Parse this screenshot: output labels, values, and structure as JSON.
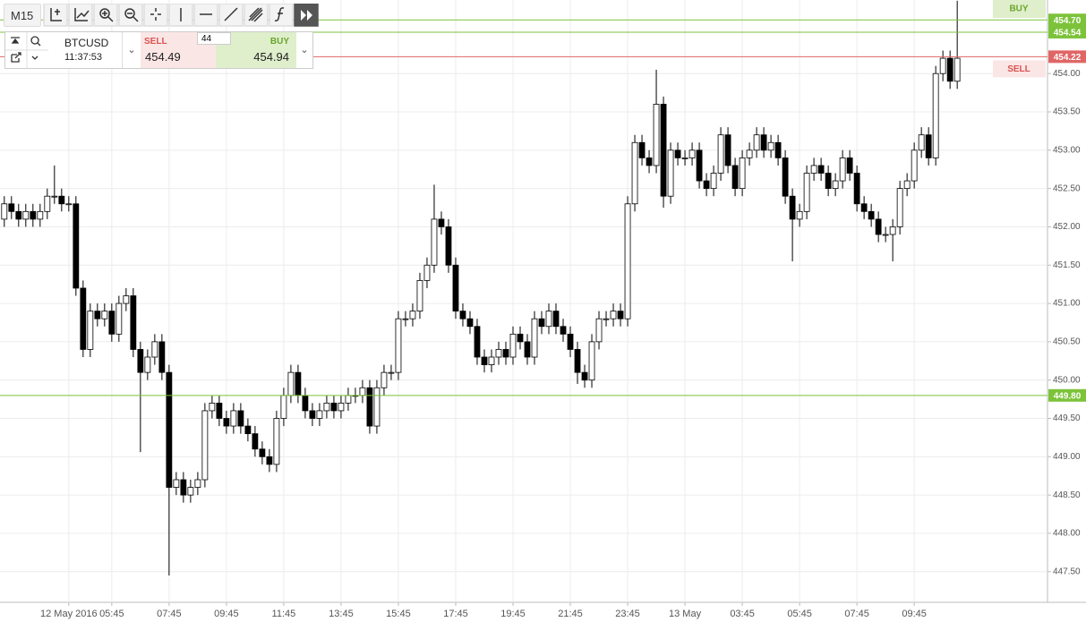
{
  "toolbar": {
    "timeframe": "M15"
  },
  "trade_panel": {
    "symbol": "BTCUSD",
    "time": "11:37:53",
    "sell_label": "SELL",
    "sell_price": "454.49",
    "quantity": "44",
    "buy_label": "BUY",
    "buy_price": "454.94"
  },
  "chart_data": {
    "type": "candlestick",
    "open": [
      452.1,
      452.3,
      452.2,
      452.1,
      452.2,
      452.1,
      452.2,
      452.4,
      452.4,
      452.3,
      452.3,
      451.2,
      450.4,
      450.9,
      450.8,
      450.9,
      450.6,
      451.0,
      451.1,
      450.4,
      450.1,
      450.3,
      450.5,
      450.1,
      448.6,
      448.7,
      448.5,
      448.6,
      448.7,
      449.6,
      449.7,
      449.5,
      449.4,
      449.6,
      449.4,
      449.3,
      449.1,
      449.0,
      448.9,
      449.5,
      449.8,
      450.1,
      449.8,
      449.6,
      449.5,
      449.6,
      449.7,
      449.6,
      449.7,
      449.8,
      449.8,
      449.9,
      449.4,
      449.9,
      450.1,
      450.1,
      450.8,
      450.8,
      450.9,
      451.3,
      451.5,
      452.1,
      452.0,
      451.5,
      450.9,
      450.8,
      450.7,
      450.3,
      450.2,
      450.3,
      450.4,
      450.3,
      450.6,
      450.5,
      450.3,
      450.8,
      450.7,
      450.9,
      450.7,
      450.6,
      450.4,
      450.1,
      450.0,
      450.5,
      450.8,
      450.8,
      450.9,
      450.8,
      452.3,
      453.1,
      452.9,
      452.8,
      453.6,
      452.4,
      453.0,
      452.9,
      452.9,
      453.0,
      452.6,
      452.5,
      452.7,
      453.2,
      452.8,
      452.5,
      452.9,
      453.0,
      453.2,
      453.0,
      453.1,
      452.9,
      452.4,
      452.1,
      452.2,
      452.7,
      452.8,
      452.7,
      452.5,
      452.6,
      452.9,
      452.7,
      452.3,
      452.2,
      452.1,
      451.9,
      451.9,
      452.0,
      452.5,
      452.6,
      453.0,
      453.2,
      452.9,
      454.0,
      454.2,
      453.9
    ],
    "high": [
      452.4,
      452.4,
      452.3,
      452.3,
      452.3,
      452.3,
      452.5,
      452.8,
      452.5,
      452.4,
      452.4,
      451.3,
      451.0,
      451.0,
      451.0,
      451.0,
      451.1,
      451.2,
      451.2,
      450.5,
      450.4,
      450.6,
      450.6,
      450.2,
      448.8,
      448.8,
      448.7,
      448.8,
      449.7,
      449.8,
      449.8,
      449.6,
      449.7,
      449.7,
      449.5,
      449.4,
      449.2,
      449.1,
      449.6,
      449.9,
      450.2,
      450.2,
      449.9,
      449.7,
      449.7,
      449.8,
      449.8,
      449.8,
      449.9,
      449.9,
      450.0,
      450.0,
      450.0,
      450.2,
      450.2,
      450.9,
      450.9,
      451.0,
      451.4,
      451.6,
      452.55,
      452.2,
      452.1,
      451.6,
      451.0,
      450.9,
      450.8,
      450.4,
      450.4,
      450.5,
      450.5,
      450.7,
      450.7,
      450.6,
      450.9,
      450.9,
      451.0,
      451.0,
      450.8,
      450.7,
      450.5,
      450.2,
      450.6,
      450.9,
      450.9,
      451.0,
      451.0,
      452.4,
      453.2,
      453.2,
      453.0,
      454.05,
      453.7,
      453.1,
      453.1,
      453.0,
      453.1,
      453.1,
      452.7,
      452.8,
      453.3,
      453.3,
      452.9,
      453.0,
      453.1,
      453.3,
      453.3,
      453.2,
      453.2,
      453.0,
      452.5,
      452.3,
      452.8,
      452.9,
      452.9,
      452.8,
      452.7,
      453.0,
      453.0,
      452.8,
      452.4,
      452.3,
      452.2,
      452.0,
      452.1,
      452.6,
      452.7,
      453.1,
      453.3,
      453.3,
      454.1,
      454.3,
      454.3,
      454.95
    ],
    "low": [
      452.0,
      452.1,
      452.0,
      452.0,
      452.0,
      452.0,
      452.1,
      452.3,
      452.2,
      452.2,
      451.1,
      450.3,
      450.3,
      450.7,
      450.7,
      450.5,
      450.5,
      450.9,
      450.3,
      449.06,
      450.0,
      450.2,
      450.0,
      447.45,
      448.5,
      448.4,
      448.4,
      448.5,
      448.6,
      449.5,
      449.4,
      449.3,
      449.3,
      449.3,
      449.2,
      449.0,
      448.9,
      448.8,
      448.8,
      449.4,
      449.7,
      449.7,
      449.5,
      449.4,
      449.4,
      449.5,
      449.5,
      449.5,
      449.6,
      449.7,
      449.7,
      449.3,
      449.3,
      449.8,
      450.0,
      450.0,
      450.7,
      450.7,
      450.8,
      451.2,
      451.4,
      451.9,
      451.4,
      450.8,
      450.7,
      450.6,
      450.2,
      450.1,
      450.1,
      450.2,
      450.2,
      450.2,
      450.4,
      450.2,
      450.2,
      450.6,
      450.6,
      450.6,
      450.5,
      450.3,
      449.95,
      449.9,
      449.9,
      450.4,
      450.7,
      450.7,
      450.7,
      450.7,
      452.2,
      452.8,
      452.7,
      452.7,
      452.25,
      452.3,
      452.8,
      452.8,
      452.8,
      452.5,
      452.4,
      452.4,
      452.6,
      452.7,
      452.4,
      452.4,
      452.8,
      452.9,
      452.9,
      452.9,
      452.8,
      452.3,
      451.55,
      452.0,
      452.1,
      452.6,
      452.6,
      452.4,
      452.4,
      452.5,
      452.6,
      452.2,
      452.1,
      452.0,
      451.8,
      451.8,
      451.55,
      451.9,
      452.4,
      452.5,
      452.9,
      452.8,
      452.8,
      453.9,
      453.8,
      453.8
    ],
    "close": [
      452.3,
      452.2,
      452.1,
      452.2,
      452.1,
      452.2,
      452.4,
      452.4,
      452.3,
      452.3,
      451.2,
      450.4,
      450.9,
      450.8,
      450.9,
      450.6,
      451.0,
      451.1,
      450.4,
      450.1,
      450.3,
      450.5,
      450.1,
      448.6,
      448.7,
      448.5,
      448.6,
      448.7,
      449.6,
      449.7,
      449.5,
      449.4,
      449.6,
      449.4,
      449.3,
      449.1,
      449.0,
      448.9,
      449.5,
      449.8,
      450.1,
      449.8,
      449.6,
      449.5,
      449.6,
      449.7,
      449.6,
      449.7,
      449.8,
      449.8,
      449.9,
      449.4,
      449.9,
      450.1,
      450.1,
      450.8,
      450.8,
      450.9,
      451.3,
      451.5,
      452.1,
      452.0,
      451.5,
      450.9,
      450.8,
      450.7,
      450.3,
      450.2,
      450.3,
      450.4,
      450.3,
      450.6,
      450.5,
      450.3,
      450.8,
      450.7,
      450.9,
      450.7,
      450.6,
      450.4,
      450.1,
      450.0,
      450.5,
      450.8,
      450.8,
      450.9,
      450.8,
      452.3,
      453.1,
      452.9,
      452.8,
      453.6,
      452.4,
      453.0,
      452.9,
      452.9,
      453.0,
      452.6,
      452.5,
      452.7,
      453.2,
      452.8,
      452.5,
      452.9,
      453.0,
      453.2,
      453.0,
      453.1,
      452.9,
      452.4,
      452.1,
      452.2,
      452.7,
      452.8,
      452.7,
      452.5,
      452.6,
      452.9,
      452.7,
      452.3,
      452.2,
      452.1,
      451.9,
      451.9,
      452.0,
      452.5,
      452.6,
      453.0,
      453.2,
      452.9,
      454.0,
      454.2,
      453.9,
      454.2
    ],
    "up_color": "#ffffff",
    "down_color": "#000000",
    "wick_color": "#000000",
    "xlim": [
      -0.6,
      145.6
    ],
    "xticks": [
      {
        "value": 9,
        "label": "12 May 2016"
      },
      {
        "value": 15,
        "label": "05:45"
      },
      {
        "value": 23,
        "label": "07:45"
      },
      {
        "value": 31,
        "label": "09:45"
      },
      {
        "value": 39,
        "label": "11:45"
      },
      {
        "value": 47,
        "label": "13:45"
      },
      {
        "value": 55,
        "label": "15:45"
      },
      {
        "value": 63,
        "label": "17:45"
      },
      {
        "value": 71,
        "label": "19:45"
      },
      {
        "value": 79,
        "label": "21:45"
      },
      {
        "value": 87,
        "label": "23:45"
      },
      {
        "value": 95,
        "label": "13 May"
      },
      {
        "value": 103,
        "label": "03:45"
      },
      {
        "value": 111,
        "label": "05:45"
      },
      {
        "value": 119,
        "label": "07:45"
      },
      {
        "value": 127,
        "label": "09:45"
      }
    ],
    "ylim": [
      447.1,
      454.96
    ],
    "yticks": [
      {
        "value": 447.5,
        "label": "447.50"
      },
      {
        "value": 448,
        "label": "448.00"
      },
      {
        "value": 448.5,
        "label": "448.50"
      },
      {
        "value": 449,
        "label": "449.00"
      },
      {
        "value": 449.5,
        "label": "449.50"
      },
      {
        "value": 450,
        "label": "450.00"
      },
      {
        "value": 450.5,
        "label": "450.50"
      },
      {
        "value": 451,
        "label": "451.00"
      },
      {
        "value": 451.5,
        "label": "451.50"
      },
      {
        "value": 452,
        "label": "452.00"
      },
      {
        "value": 452.5,
        "label": "452.50"
      },
      {
        "value": 453,
        "label": "453.00"
      },
      {
        "value": 453.5,
        "label": "453.50"
      },
      {
        "value": 454,
        "label": "454.00"
      }
    ],
    "grid": true,
    "price_lines": [
      {
        "value": 454.7,
        "label": "454.70",
        "color": "#7cc33a",
        "tag": "BUY"
      },
      {
        "value": 454.54,
        "label": "454.54",
        "color": "#7cc33a"
      },
      {
        "value": 454.22,
        "label": "454.22",
        "color": "#e06666",
        "tag": "SELL"
      },
      {
        "value": 449.8,
        "label": "449.80",
        "color": "#7cc33a"
      }
    ]
  }
}
